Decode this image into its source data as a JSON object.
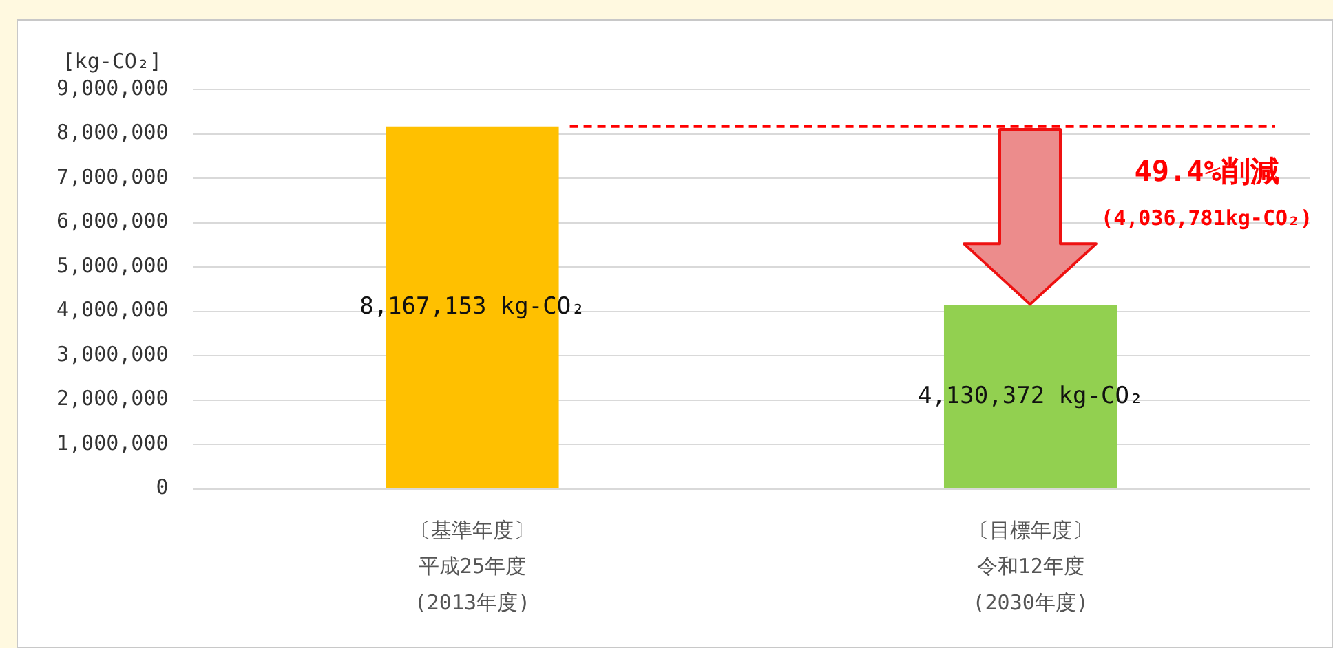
{
  "chart_data": {
    "type": "bar",
    "ylabel": "[kg-CO₂]",
    "categories": [
      "〔基準年度〕平成25年度(2013年度)",
      "〔目標年度〕令和12年度(2030年度)"
    ],
    "values": [
      8167153,
      4130372
    ],
    "colors": [
      "#ffc000",
      "#92d050"
    ],
    "value_labels": [
      "8,167,153 kg-CO₂",
      "4,130,372 kg-CO₂"
    ],
    "ylim": [
      0,
      9000000
    ],
    "yticks": [
      0,
      {
        "value": 1000000,
        "label": "1,000,000"
      },
      {
        "value": 2000000,
        "label": "2,000,000"
      },
      {
        "value": 3000000,
        "label": "3,000,000"
      },
      {
        "value": 4000000,
        "label": "4,000,000"
      },
      {
        "value": 5000000,
        "label": "5,000,000"
      },
      {
        "value": 6000000,
        "label": "6,000,000"
      },
      {
        "value": 7000000,
        "label": "7,000,000"
      },
      {
        "value": 8000000,
        "label": "8,000,000"
      },
      {
        "value": 9000000,
        "label": "9,000,000"
      }
    ],
    "grid": "y",
    "legend": false,
    "ref_lines": [
      {
        "axis": "y",
        "value": 8167153,
        "color": "#ff0000",
        "line_style": "dashed"
      }
    ],
    "annotations": [
      "49.4%削減",
      "(4,036,781kg-CO₂)"
    ]
  }
}
